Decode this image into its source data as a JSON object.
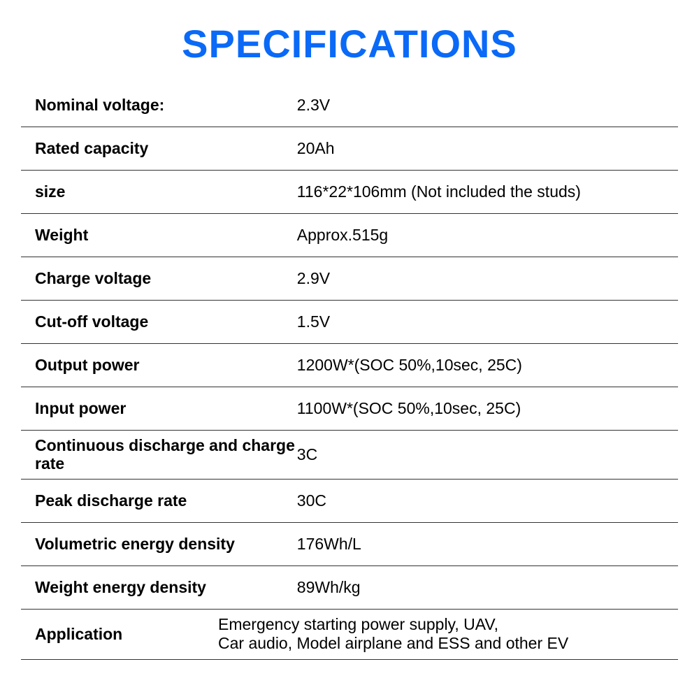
{
  "title": "SPECIFICATIONS",
  "title_color": "#0a6af7",
  "border_color": "#333333",
  "background_color": "#ffffff",
  "label_fontweight": 700,
  "value_fontweight": 400,
  "fontsize_title": 56,
  "fontsize_body": 23,
  "rows": [
    {
      "label": "Nominal voltage:",
      "value": "2.3V"
    },
    {
      "label": "Rated capacity",
      "value": "20Ah"
    },
    {
      "label": "size",
      "value": "116*22*106mm (Not included the studs)"
    },
    {
      "label": "Weight",
      "value": "Approx.515g"
    },
    {
      "label": "Charge voltage",
      "value": "2.9V"
    },
    {
      "label": "Cut-off voltage",
      "value": "1.5V"
    },
    {
      "label": "Output power",
      "value": "1200W*(SOC 50%,10sec, 25C)"
    },
    {
      "label": "Input power",
      "value": "1100W*(SOC 50%,10sec, 25C)"
    },
    {
      "label": "Continuous discharge and charge rate",
      "value": "3C"
    },
    {
      "label": "Peak discharge rate",
      "value": "30C"
    },
    {
      "label": "Volumetric energy density",
      "value": "176Wh/L"
    },
    {
      "label": "Weight energy density",
      "value": "89Wh/kg"
    },
    {
      "label": "Application",
      "value": "Emergency starting power supply, UAV,\nCar audio, Model airplane and ESS and other EV"
    }
  ]
}
